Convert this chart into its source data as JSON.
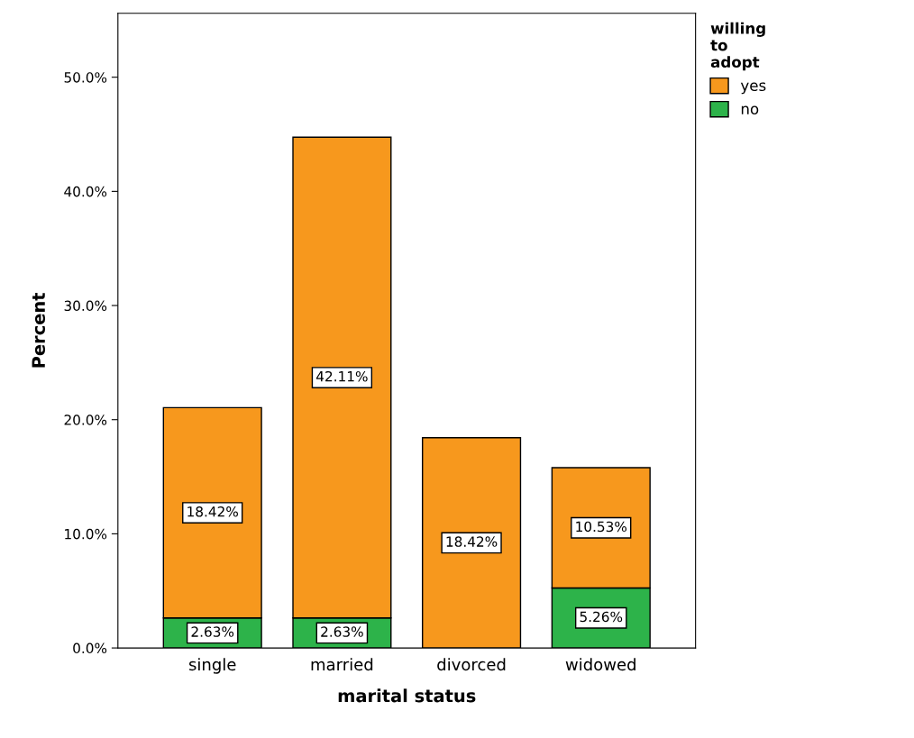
{
  "chart_data": {
    "type": "bar",
    "stacked": true,
    "xlabel": "marital status",
    "ylabel": "Percent",
    "legend_title": "willing\nto\nadopt",
    "legend": "right",
    "grid": false,
    "categories": [
      "single",
      "married",
      "divorced",
      "widowed"
    ],
    "ylim": [
      0,
      55.6
    ],
    "yticks": [
      {
        "value": 0,
        "label": "0.0%"
      },
      {
        "value": 10,
        "label": "10.0%"
      },
      {
        "value": 20,
        "label": "20.0%"
      },
      {
        "value": 30,
        "label": "30.0%"
      },
      {
        "value": 40,
        "label": "40.0%"
      },
      {
        "value": 50,
        "label": "50.0%"
      }
    ],
    "series": [
      {
        "name": "no",
        "color": "#2db34a",
        "values": [
          2.63,
          2.63,
          null,
          5.26
        ],
        "value_labels": [
          "2.63%",
          "2.63%",
          null,
          "5.26%"
        ]
      },
      {
        "name": "yes",
        "color": "#f7981d",
        "values": [
          18.42,
          42.11,
          18.42,
          10.53
        ],
        "value_labels": [
          "18.42%",
          "42.11%",
          "18.42%",
          "10.53%"
        ]
      }
    ]
  }
}
